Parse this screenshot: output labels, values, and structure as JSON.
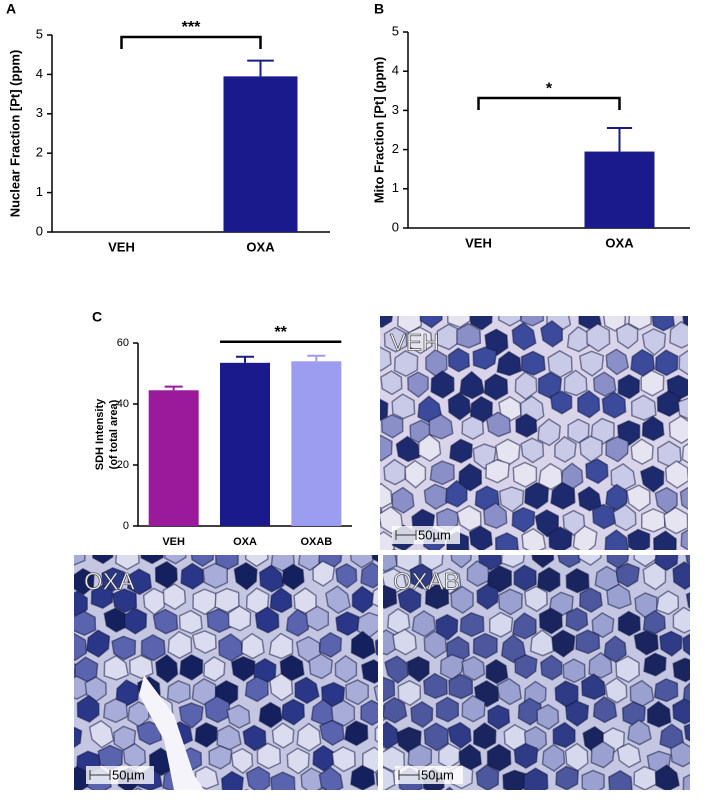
{
  "chart_data": [
    {
      "type": "bar",
      "panel": "A",
      "ylabel": "Nuclear Fraction [Pt] (ppm)",
      "categories": [
        "VEH",
        "OXA"
      ],
      "values": [
        0,
        3.95
      ],
      "errors": [
        null,
        0.4
      ],
      "colors": [
        "#1a1a8c",
        "#1a1a8c"
      ],
      "ylim": [
        0,
        5
      ],
      "yticks": [
        0,
        1,
        2,
        3,
        4,
        5
      ],
      "significance": "***"
    },
    {
      "type": "bar",
      "panel": "B",
      "ylabel": "Mito Fraction [Pt] (ppm)",
      "categories": [
        "VEH",
        "OXA"
      ],
      "values": [
        0,
        1.95
      ],
      "errors": [
        null,
        0.6
      ],
      "colors": [
        "#1a1a8c",
        "#1a1a8c"
      ],
      "ylim": [
        0,
        5
      ],
      "yticks": [
        0,
        1,
        2,
        3,
        4,
        5
      ],
      "significance": "*"
    },
    {
      "type": "bar",
      "panel": "C",
      "ylabel": [
        "SDH Intensity",
        "(of total area)"
      ],
      "categories": [
        "VEH",
        "OXA",
        "OXAB"
      ],
      "values": [
        44.5,
        53.5,
        54
      ],
      "errors": [
        1.2,
        2,
        1.8
      ],
      "colors": [
        "#9b1a9b",
        "#1a1a8c",
        "#9c9cf0"
      ],
      "ylim": [
        0,
        60
      ],
      "yticks": [
        0,
        20,
        40,
        60
      ],
      "significance": "**"
    }
  ],
  "images": [
    {
      "label": "VEH",
      "scale_bar": "50µm"
    },
    {
      "label": "OXA",
      "scale_bar": "50µm"
    },
    {
      "label": "OXAB",
      "scale_bar": "50µm"
    }
  ]
}
